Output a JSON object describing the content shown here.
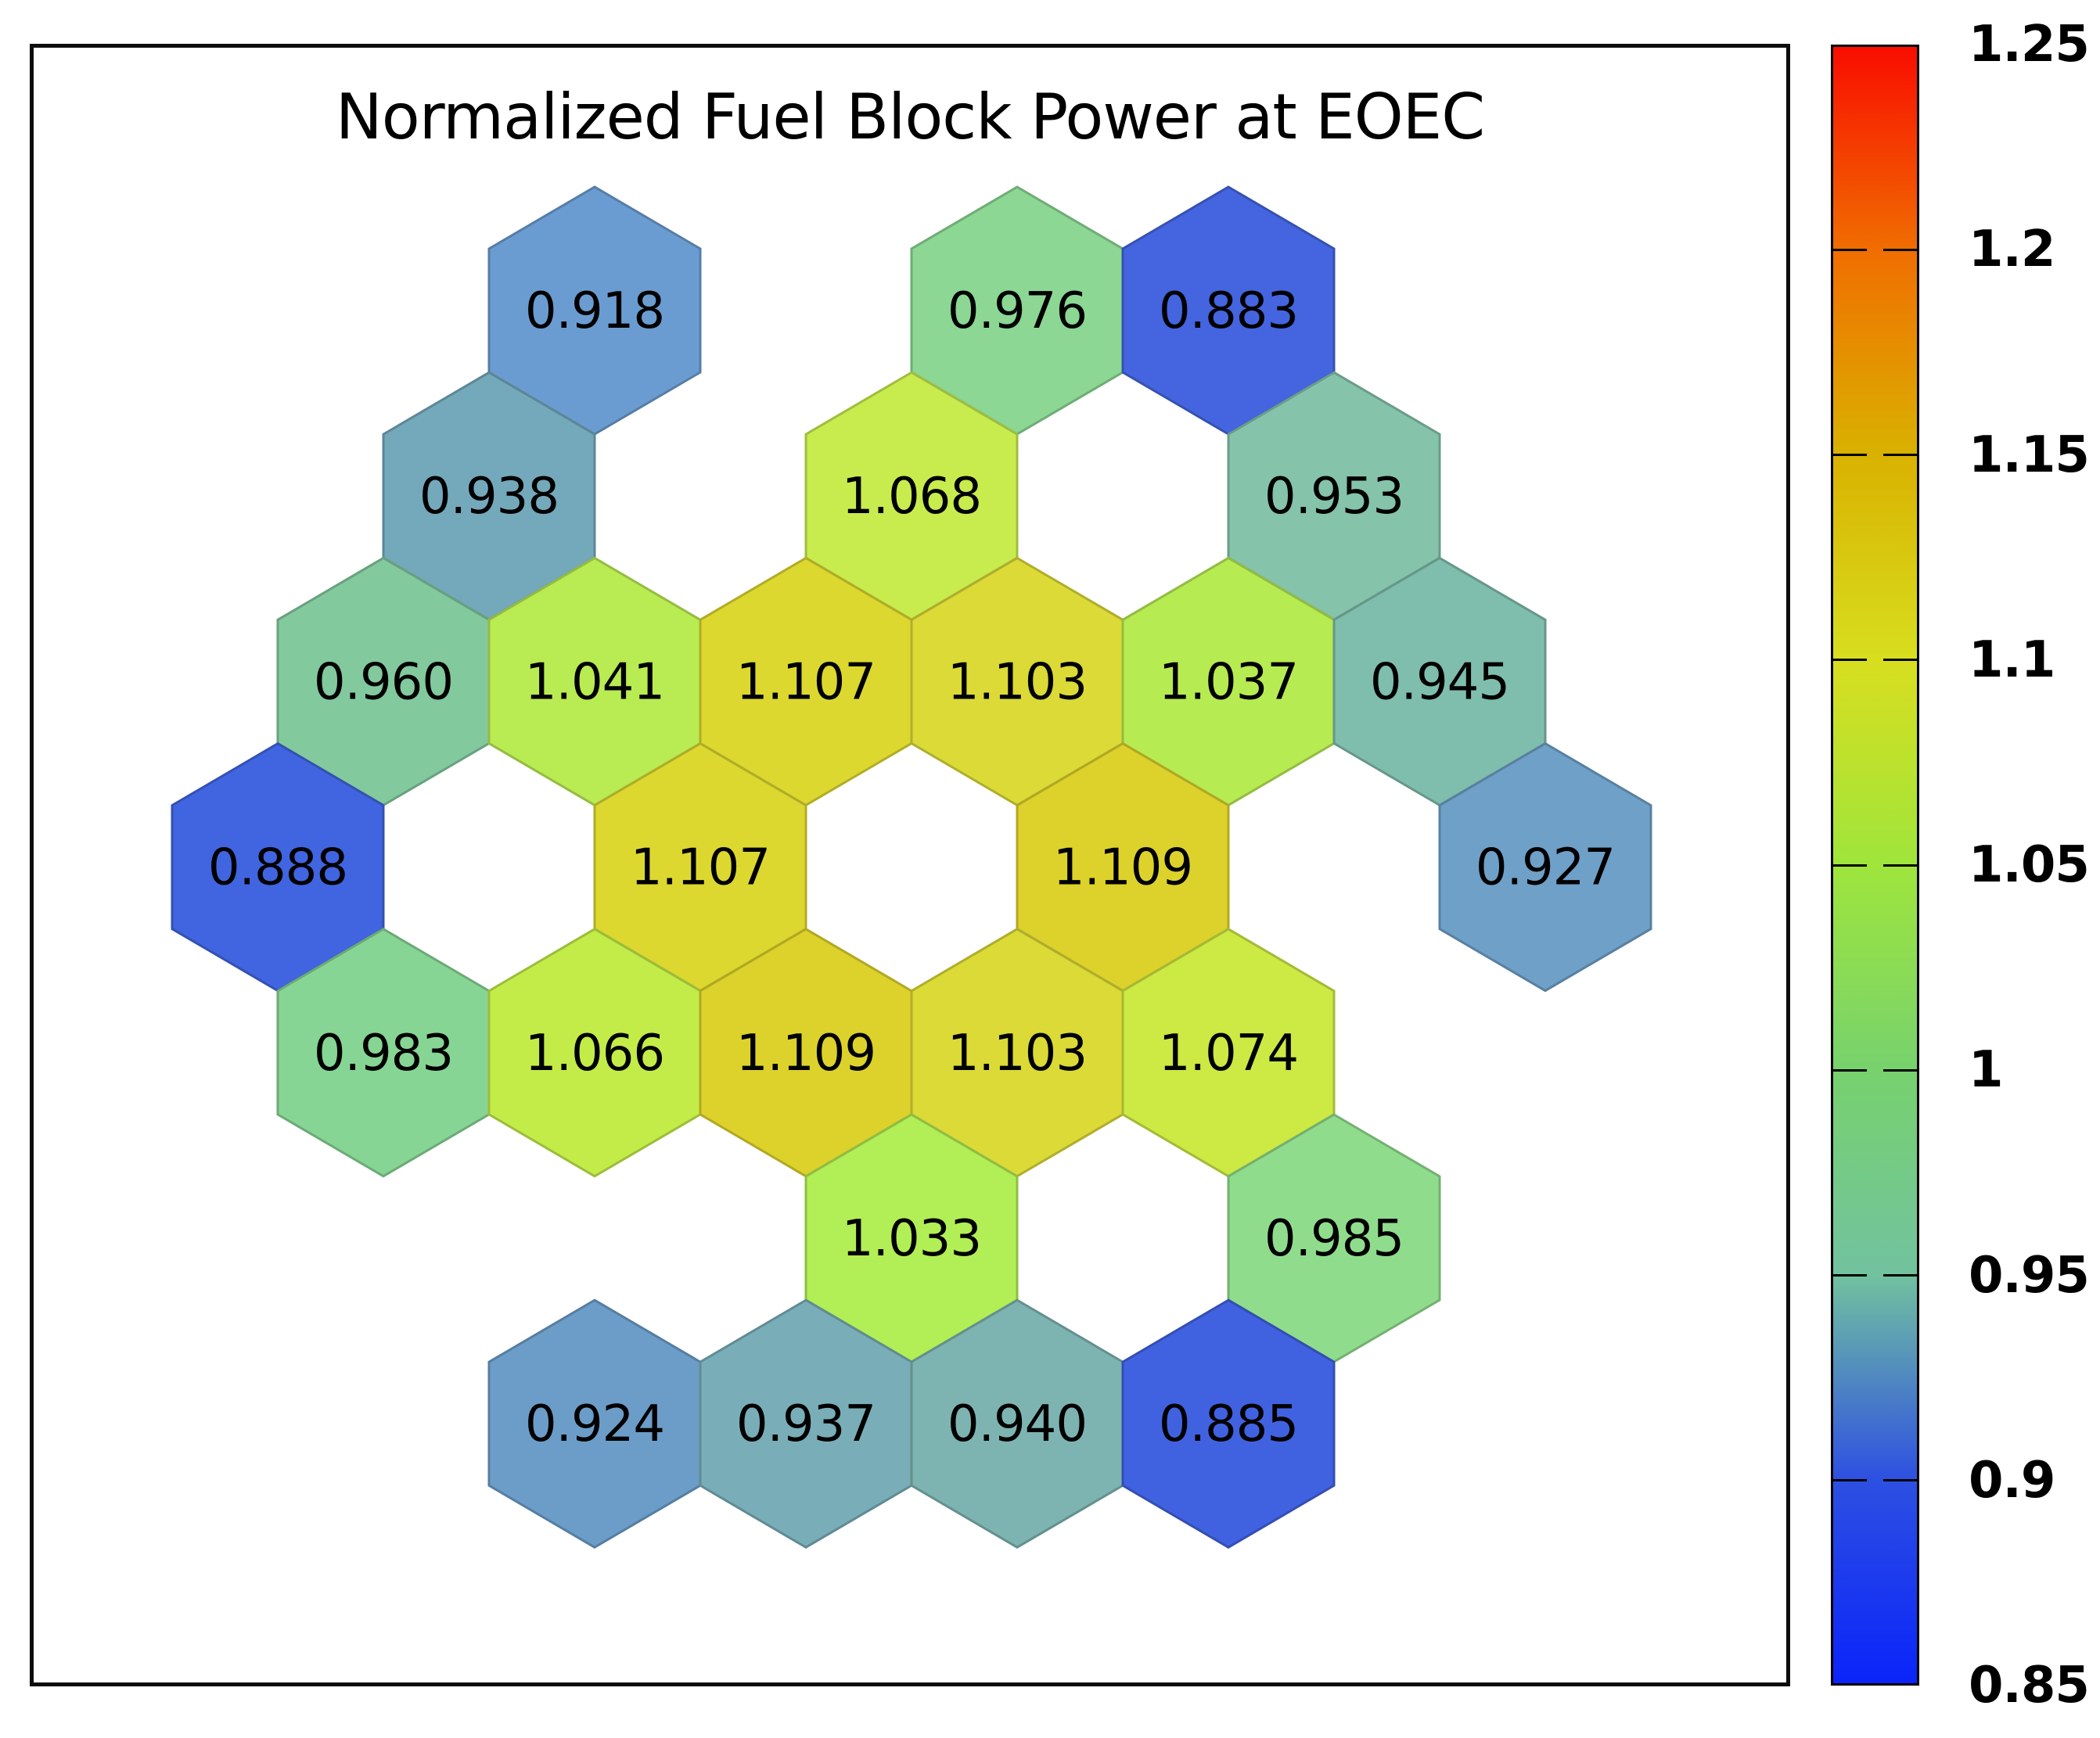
{
  "chart_data": {
    "type": "heatmap",
    "variant": "hexagonal-block-map",
    "title": "Normalized Fuel Block Power at EOEC",
    "background": "#ffffff",
    "text_color": "#000000",
    "colorbar": {
      "position": "right",
      "min": 0.85,
      "max": 1.25,
      "ticks": [
        {
          "value": 1.25,
          "label": "1.25"
        },
        {
          "value": 1.2,
          "label": "1.2"
        },
        {
          "value": 1.15,
          "label": "1.15"
        },
        {
          "value": 1.1,
          "label": "1.1"
        },
        {
          "value": 1.05,
          "label": "1.05"
        },
        {
          "value": 1.0,
          "label": "1"
        },
        {
          "value": 0.95,
          "label": "0.95"
        },
        {
          "value": 0.9,
          "label": "0.9"
        },
        {
          "value": 0.85,
          "label": "0.85"
        }
      ],
      "gradient_stops": [
        {
          "value": 0.85,
          "color": "#0a24fa"
        },
        {
          "value": 0.9,
          "color": "#2e50e1"
        },
        {
          "value": 0.95,
          "color": "#72c29f"
        },
        {
          "value": 1.0,
          "color": "#77d26d"
        },
        {
          "value": 1.05,
          "color": "#9fe53c"
        },
        {
          "value": 1.1,
          "color": "#d8de1f"
        },
        {
          "value": 1.15,
          "color": "#d9b200"
        },
        {
          "value": 1.2,
          "color": "#f06e00"
        },
        {
          "value": 1.25,
          "color": "#f90d00"
        }
      ]
    },
    "cells": [
      {
        "row": 0,
        "col": 3,
        "value": "0.918",
        "color": "#6b9cd1"
      },
      {
        "row": 0,
        "col": 7,
        "value": "0.976",
        "color": "#8bd793"
      },
      {
        "row": 0,
        "col": 9,
        "value": "0.883",
        "color": "#4465df"
      },
      {
        "row": 1,
        "col": 2,
        "value": "0.938",
        "color": "#74a9bb"
      },
      {
        "row": 1,
        "col": 6,
        "value": "1.068",
        "color": "#c8ec4e"
      },
      {
        "row": 1,
        "col": 10,
        "value": "0.953",
        "color": "#85c3ab"
      },
      {
        "row": 2,
        "col": 1,
        "value": "0.960",
        "color": "#83c99e"
      },
      {
        "row": 2,
        "col": 3,
        "value": "1.041",
        "color": "#b9eb52"
      },
      {
        "row": 2,
        "col": 5,
        "value": "1.107",
        "color": "#dcd830"
      },
      {
        "row": 2,
        "col": 7,
        "value": "1.103",
        "color": "#dbda37"
      },
      {
        "row": 2,
        "col": 9,
        "value": "1.037",
        "color": "#b7eb52"
      },
      {
        "row": 2,
        "col": 11,
        "value": "0.945",
        "color": "#7fbdad"
      },
      {
        "row": 3,
        "col": 0,
        "value": "0.888",
        "color": "#4165e0"
      },
      {
        "row": 3,
        "col": 4,
        "value": "1.107",
        "color": "#dcd830"
      },
      {
        "row": 3,
        "col": 8,
        "value": "1.109",
        "color": "#ddd22b"
      },
      {
        "row": 3,
        "col": 12,
        "value": "0.927",
        "color": "#6fa0c8"
      },
      {
        "row": 4,
        "col": 1,
        "value": "0.983",
        "color": "#87d594"
      },
      {
        "row": 4,
        "col": 3,
        "value": "1.066",
        "color": "#c3ec49"
      },
      {
        "row": 4,
        "col": 5,
        "value": "1.109",
        "color": "#ddd22b"
      },
      {
        "row": 4,
        "col": 7,
        "value": "1.103",
        "color": "#dbda37"
      },
      {
        "row": 4,
        "col": 9,
        "value": "1.074",
        "color": "#cde943"
      },
      {
        "row": 5,
        "col": 6,
        "value": "1.033",
        "color": "#b2ee55"
      },
      {
        "row": 5,
        "col": 10,
        "value": "0.985",
        "color": "#90dc8d"
      },
      {
        "row": 6,
        "col": 3,
        "value": "0.924",
        "color": "#6c9dc8"
      },
      {
        "row": 6,
        "col": 5,
        "value": "0.937",
        "color": "#79aeb8"
      },
      {
        "row": 6,
        "col": 7,
        "value": "0.940",
        "color": "#7db4b2"
      },
      {
        "row": 6,
        "col": 9,
        "value": "0.885",
        "color": "#4162e0"
      }
    ]
  }
}
